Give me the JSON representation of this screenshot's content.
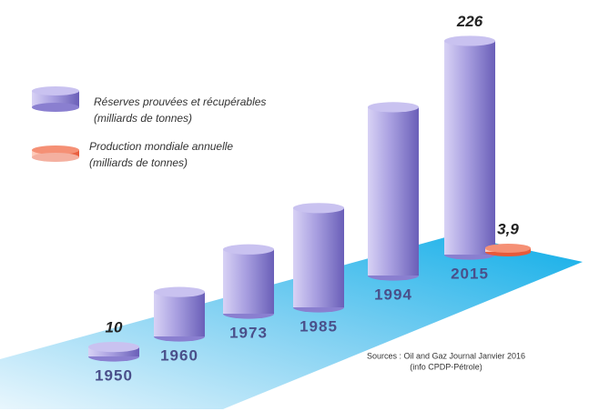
{
  "chart_data": {
    "type": "cylinder-bar",
    "categories": [
      "1950",
      "1960",
      "1973",
      "1985",
      "1994",
      "2015"
    ],
    "series": [
      {
        "name": "Réserves prouvées et récupérables",
        "note": "(milliards de tonnes)",
        "color": "#8a7fd0",
        "values": [
          10,
          47,
          68,
          105,
          178,
          226
        ],
        "value_labels": [
          "10",
          null,
          null,
          null,
          null,
          "226"
        ]
      },
      {
        "name": "Production mondiale annuelle",
        "note": "(milliards de tonnes)",
        "color": "#f07a5a",
        "values": [
          null,
          null,
          null,
          null,
          null,
          3.9
        ],
        "value_labels": [
          null,
          null,
          null,
          null,
          null,
          "3,9"
        ]
      }
    ],
    "source": [
      "Sources : Oil and Gaz Journal Janvier 2016",
      "(info CPDP-Pétrole)"
    ]
  }
}
